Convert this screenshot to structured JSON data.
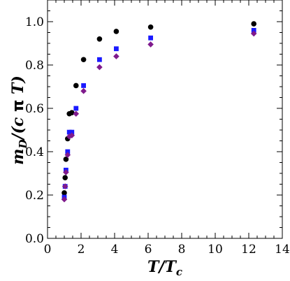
{
  "chart_data": {
    "type": "scatter",
    "title": "",
    "xlabel": "T/T_c",
    "ylabel": "m_D/(c π T)",
    "xlim": [
      0,
      14
    ],
    "ylim": [
      0,
      1.1
    ],
    "xticks": [
      0,
      2,
      4,
      6,
      8,
      10,
      12,
      14
    ],
    "yticks": [
      0.0,
      0.2,
      0.4,
      0.6,
      0.8,
      1.0
    ],
    "ytick_labels": [
      "0.0",
      "0.2",
      "0.4",
      "0.6",
      "0.8",
      "1.0"
    ],
    "grid": false,
    "legend": "none",
    "series": [
      {
        "marker": "circle",
        "color": "#000000",
        "x": [
          1.0,
          1.05,
          1.1,
          1.2,
          1.3,
          1.45,
          1.7,
          2.15,
          3.1,
          4.1,
          6.15,
          12.3
        ],
        "y": [
          0.21,
          0.28,
          0.365,
          0.46,
          0.575,
          0.58,
          0.705,
          0.825,
          0.92,
          0.955,
          0.975,
          0.99
        ]
      },
      {
        "marker": "square",
        "color": "#1a1aff",
        "x": [
          1.0,
          1.05,
          1.1,
          1.2,
          1.3,
          1.45,
          1.7,
          2.15,
          3.1,
          4.1,
          6.15,
          12.3
        ],
        "y": [
          0.19,
          0.24,
          0.315,
          0.4,
          0.49,
          0.49,
          0.6,
          0.705,
          0.825,
          0.875,
          0.925,
          0.96
        ]
      },
      {
        "marker": "diamond",
        "color": "#7f1a8c",
        "x": [
          1.0,
          1.05,
          1.1,
          1.2,
          1.3,
          1.45,
          1.7,
          2.15,
          3.1,
          4.1,
          6.15,
          12.3
        ],
        "y": [
          0.18,
          0.24,
          0.305,
          0.385,
          0.47,
          0.475,
          0.575,
          0.68,
          0.79,
          0.84,
          0.895,
          0.945
        ]
      }
    ]
  }
}
